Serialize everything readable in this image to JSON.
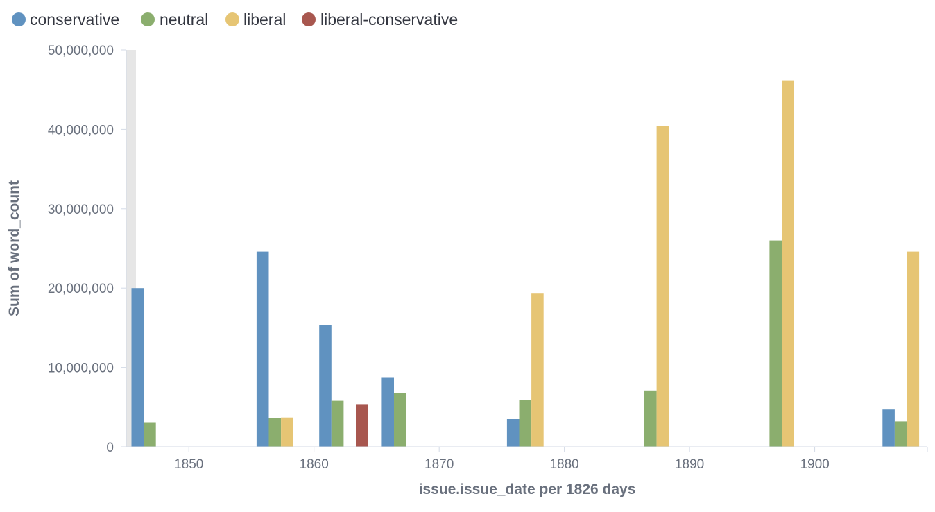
{
  "chart_data": {
    "type": "bar",
    "xlabel": "issue.issue_date per 1826 days",
    "ylabel": "Sum of word_count",
    "ylim": [
      0,
      50000000
    ],
    "xlim": [
      "1845-01-01",
      "1909-01-01"
    ],
    "x_ticks": [
      "1850",
      "1860",
      "1870",
      "1880",
      "1890",
      "1900"
    ],
    "y_ticks": [
      "0",
      "10,000,000",
      "20,000,000",
      "30,000,000",
      "40,000,000",
      "50,000,000"
    ],
    "y_tick_values": [
      0,
      10000000,
      20000000,
      30000000,
      40000000,
      50000000
    ],
    "legend_position": "top-left",
    "grid": false,
    "x": [
      "1845-06-01",
      "1855-06-01",
      "1860-06-01",
      "1865-06-01",
      "1875-06-01",
      "1885-06-01",
      "1895-06-01",
      "1905-06-01"
    ],
    "series": [
      {
        "name": "conservative",
        "color": "#6092c0",
        "values": [
          20000000,
          24600000,
          15300000,
          8700000,
          3500000,
          null,
          null,
          4700000
        ]
      },
      {
        "name": "neutral",
        "color": "#8bae6e",
        "values": [
          3100000,
          3600000,
          5800000,
          6800000,
          5900000,
          7100000,
          26000000,
          3200000
        ]
      },
      {
        "name": "liberal",
        "color": "#e6c574",
        "values": [
          null,
          3700000,
          null,
          null,
          19300000,
          40400000,
          46100000,
          24600000
        ]
      },
      {
        "name": "liberal-conservative",
        "color": "#a8574f",
        "values": [
          null,
          null,
          5300000,
          null,
          null,
          null,
          null,
          null
        ]
      }
    ]
  }
}
